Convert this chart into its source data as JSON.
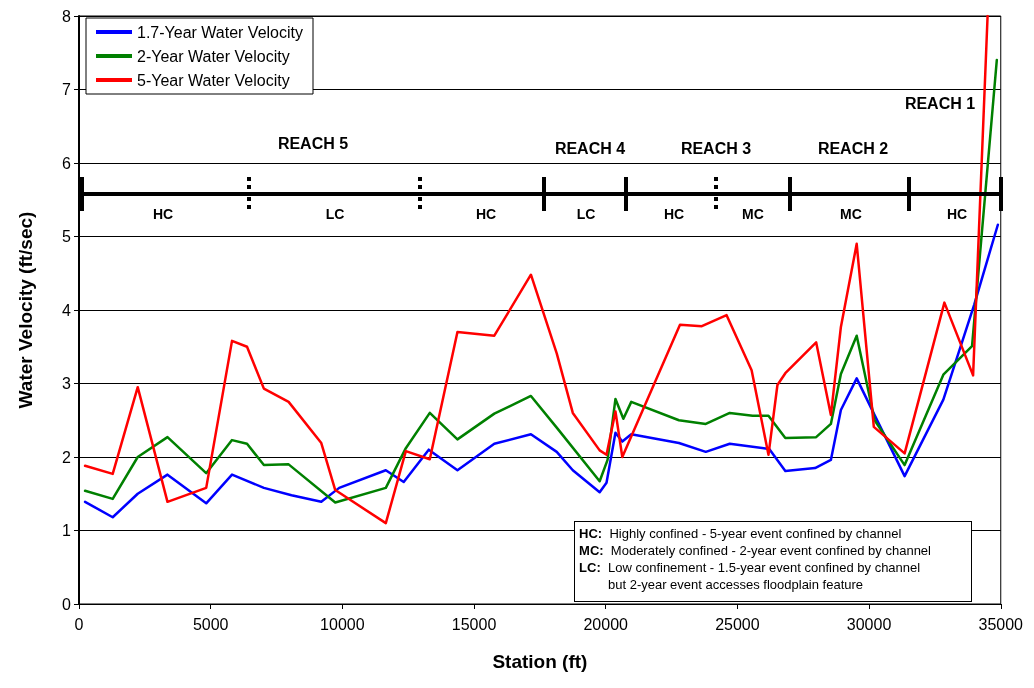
{
  "chart_data": {
    "type": "line",
    "xlabel": "Station (ft)",
    "ylabel": "Water Velocity (ft/sec)",
    "xlim": [
      0,
      35000
    ],
    "xticks": [
      0,
      5000,
      10000,
      15000,
      20000,
      25000,
      30000,
      35000
    ],
    "ylim": [
      0,
      8
    ],
    "yticks": [
      0,
      1,
      2,
      3,
      4,
      5,
      6,
      7,
      8
    ],
    "grid": "y",
    "legend": "top left",
    "marker": "none",
    "line_style": "solid",
    "series": [
      {
        "name": "1.7-Year Water Velocity",
        "color": "#0000ff",
        "x": [
          230,
          1280,
          2230,
          3360,
          4830,
          5810,
          7020,
          8070,
          9200,
          9880,
          11650,
          12330,
          13280,
          14370,
          15770,
          17160,
          18140,
          18750,
          19770,
          20030,
          20370,
          20630,
          20970,
          22780,
          23800,
          24710,
          26210,
          26820,
          27950,
          28550,
          28930,
          29530,
          30210,
          31350,
          32820,
          33990,
          34890
        ],
        "values": [
          1.39,
          1.18,
          1.5,
          1.76,
          1.37,
          1.76,
          1.58,
          1.48,
          1.39,
          1.58,
          1.82,
          1.66,
          2.1,
          1.82,
          2.18,
          2.31,
          2.07,
          1.82,
          1.52,
          1.65,
          2.33,
          2.21,
          2.31,
          2.19,
          2.07,
          2.18,
          2.11,
          1.81,
          1.85,
          1.96,
          2.64,
          3.07,
          2.57,
          1.74,
          2.78,
          4.07,
          5.16
        ]
      },
      {
        "name": "2-Year Water Velocity",
        "color": "#008000",
        "x": [
          230,
          1280,
          2230,
          3360,
          4830,
          5810,
          6380,
          7020,
          7960,
          9730,
          11650,
          12410,
          13320,
          14370,
          15770,
          17160,
          18140,
          19770,
          20070,
          20370,
          20670,
          20970,
          22780,
          23800,
          24710,
          25580,
          26180,
          26820,
          27990,
          28550,
          28930,
          29530,
          30210,
          31350,
          32820,
          33910,
          34850
        ],
        "values": [
          1.54,
          1.43,
          2.0,
          2.27,
          1.78,
          2.23,
          2.18,
          1.89,
          1.9,
          1.38,
          1.58,
          2.12,
          2.6,
          2.24,
          2.59,
          2.83,
          2.4,
          1.67,
          1.96,
          2.79,
          2.52,
          2.75,
          2.5,
          2.45,
          2.6,
          2.56,
          2.56,
          2.26,
          2.27,
          2.45,
          3.13,
          3.65,
          2.5,
          1.89,
          3.12,
          3.51,
          7.4
        ]
      },
      {
        "name": "5-Year Water Velocity",
        "color": "#ff0000",
        "x": [
          230,
          1280,
          2230,
          3360,
          4830,
          5810,
          6380,
          7020,
          7960,
          9200,
          9730,
          11650,
          12410,
          13320,
          14370,
          15770,
          17160,
          18140,
          18750,
          19770,
          20030,
          20370,
          20630,
          22820,
          23650,
          24590,
          25540,
          26180,
          26520,
          26820,
          27990,
          28550,
          28930,
          29530,
          30180,
          31350,
          32860,
          33950,
          34500
        ],
        "values": [
          1.88,
          1.77,
          2.95,
          1.39,
          1.58,
          3.58,
          3.5,
          2.93,
          2.75,
          2.19,
          1.55,
          1.1,
          2.08,
          1.97,
          3.7,
          3.65,
          4.48,
          3.41,
          2.6,
          2.09,
          2.03,
          2.62,
          2.0,
          3.8,
          3.78,
          3.93,
          3.18,
          2.03,
          2.98,
          3.14,
          3.56,
          2.57,
          3.77,
          4.9,
          2.41,
          2.05,
          4.1,
          3.11,
          8.0
        ]
      }
    ],
    "annotations": [
      "REACH 5",
      "REACH 4",
      "REACH 3",
      "REACH 2",
      "REACH 1",
      "HC",
      "LC",
      "HC",
      "LC",
      "HC",
      "MC",
      "MC",
      "HC",
      "HC:  Highly confined - 5-year event confined by channel",
      "MC:  Moderately confined - 2-year event confined by channel",
      "LC:  Low confinement - 1.5-year event confined by channel\n        but 2-year event accesses floodplain feature"
    ]
  }
}
